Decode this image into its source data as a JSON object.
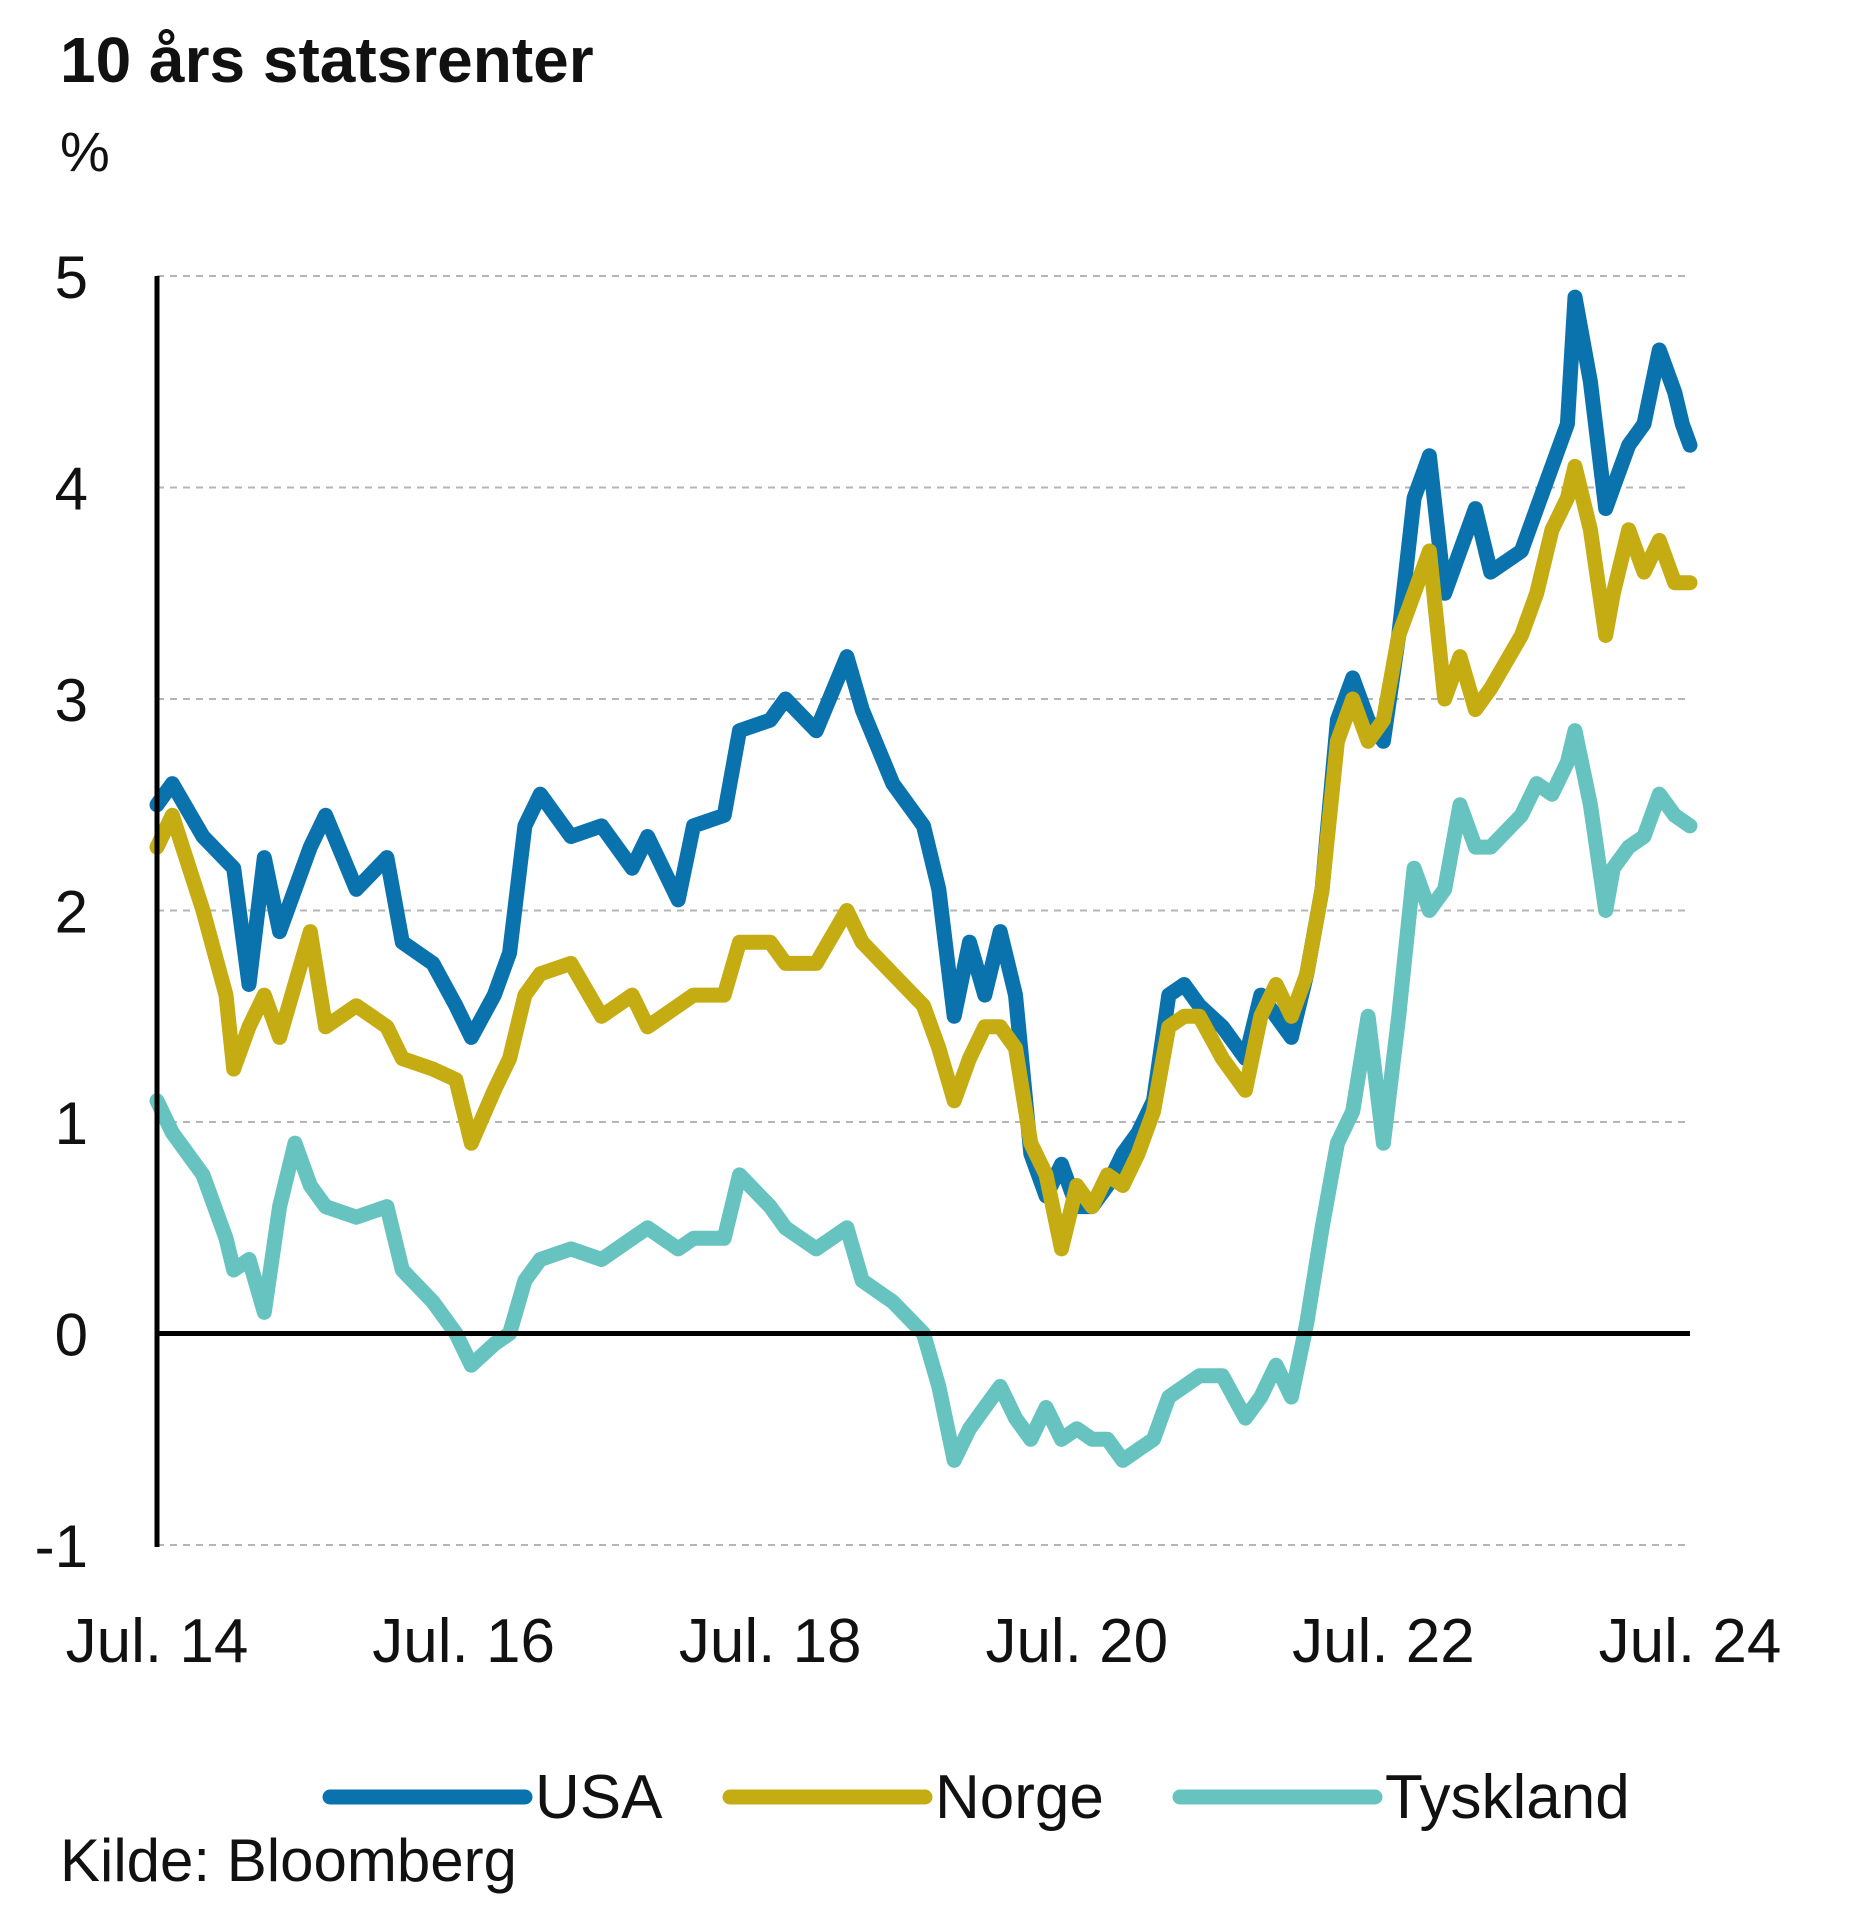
{
  "chart_data": {
    "type": "line",
    "title": "10 års statsrenter",
    "ylabel": "%",
    "ylim": [
      -1,
      5
    ],
    "yticks": [
      "5",
      "4",
      "3",
      "2",
      "1",
      "0",
      "-1"
    ],
    "xlabels": [
      "Jul. 14",
      "Jul. 16",
      "Jul. 18",
      "Jul. 20",
      "Jul. 22",
      "Jul. 24"
    ],
    "xlabel_years": [
      2014.5,
      2016.5,
      2018.5,
      2020.5,
      2022.5,
      2024.5
    ],
    "xlim": [
      2014.5,
      2024.5
    ],
    "grid": true,
    "legend_position": "bottom",
    "source": "Kilde: Bloomberg",
    "series": [
      {
        "name": "USA",
        "color": "#0a72ad",
        "points": [
          [
            2014.5,
            2.5
          ],
          [
            2014.6,
            2.6
          ],
          [
            2014.8,
            2.35
          ],
          [
            2015.0,
            2.2
          ],
          [
            2015.1,
            1.65
          ],
          [
            2015.2,
            2.25
          ],
          [
            2015.3,
            1.9
          ],
          [
            2015.5,
            2.3
          ],
          [
            2015.6,
            2.45
          ],
          [
            2015.8,
            2.1
          ],
          [
            2016.0,
            2.25
          ],
          [
            2016.1,
            1.85
          ],
          [
            2016.3,
            1.75
          ],
          [
            2016.45,
            1.55
          ],
          [
            2016.55,
            1.4
          ],
          [
            2016.7,
            1.6
          ],
          [
            2016.8,
            1.8
          ],
          [
            2016.9,
            2.4
          ],
          [
            2017.0,
            2.55
          ],
          [
            2017.2,
            2.35
          ],
          [
            2017.4,
            2.4
          ],
          [
            2017.6,
            2.2
          ],
          [
            2017.7,
            2.35
          ],
          [
            2017.9,
            2.05
          ],
          [
            2018.0,
            2.4
          ],
          [
            2018.2,
            2.45
          ],
          [
            2018.3,
            2.85
          ],
          [
            2018.5,
            2.9
          ],
          [
            2018.6,
            3.0
          ],
          [
            2018.8,
            2.85
          ],
          [
            2019.0,
            3.2
          ],
          [
            2019.1,
            2.95
          ],
          [
            2019.3,
            2.6
          ],
          [
            2019.5,
            2.4
          ],
          [
            2019.6,
            2.1
          ],
          [
            2019.7,
            1.5
          ],
          [
            2019.8,
            1.85
          ],
          [
            2019.9,
            1.6
          ],
          [
            2020.0,
            1.9
          ],
          [
            2020.1,
            1.6
          ],
          [
            2020.2,
            0.85
          ],
          [
            2020.3,
            0.65
          ],
          [
            2020.4,
            0.8
          ],
          [
            2020.5,
            0.6
          ],
          [
            2020.6,
            0.6
          ],
          [
            2020.7,
            0.7
          ],
          [
            2020.8,
            0.85
          ],
          [
            2020.9,
            0.95
          ],
          [
            2021.0,
            1.1
          ],
          [
            2021.1,
            1.6
          ],
          [
            2021.2,
            1.65
          ],
          [
            2021.3,
            1.55
          ],
          [
            2021.45,
            1.45
          ],
          [
            2021.6,
            1.3
          ],
          [
            2021.7,
            1.6
          ],
          [
            2021.8,
            1.5
          ],
          [
            2021.9,
            1.4
          ],
          [
            2022.0,
            1.7
          ],
          [
            2022.1,
            2.1
          ],
          [
            2022.2,
            2.9
          ],
          [
            2022.3,
            3.1
          ],
          [
            2022.4,
            2.9
          ],
          [
            2022.5,
            2.8
          ],
          [
            2022.6,
            3.3
          ],
          [
            2022.7,
            3.95
          ],
          [
            2022.8,
            4.15
          ],
          [
            2022.9,
            3.5
          ],
          [
            2023.0,
            3.7
          ],
          [
            2023.1,
            3.9
          ],
          [
            2023.2,
            3.6
          ],
          [
            2023.4,
            3.7
          ],
          [
            2023.5,
            3.9
          ],
          [
            2023.6,
            4.1
          ],
          [
            2023.7,
            4.3
          ],
          [
            2023.75,
            4.9
          ],
          [
            2023.85,
            4.5
          ],
          [
            2023.95,
            3.9
          ],
          [
            2024.0,
            4.0
          ],
          [
            2024.1,
            4.2
          ],
          [
            2024.2,
            4.3
          ],
          [
            2024.3,
            4.65
          ],
          [
            2024.4,
            4.45
          ],
          [
            2024.45,
            4.3
          ],
          [
            2024.5,
            4.2
          ]
        ]
      },
      {
        "name": "Norge",
        "color": "#c4ac12",
        "points": [
          [
            2014.5,
            2.3
          ],
          [
            2014.6,
            2.45
          ],
          [
            2014.8,
            2.0
          ],
          [
            2014.95,
            1.6
          ],
          [
            2015.0,
            1.25
          ],
          [
            2015.1,
            1.45
          ],
          [
            2015.2,
            1.6
          ],
          [
            2015.3,
            1.4
          ],
          [
            2015.5,
            1.9
          ],
          [
            2015.6,
            1.45
          ],
          [
            2015.8,
            1.55
          ],
          [
            2016.0,
            1.45
          ],
          [
            2016.1,
            1.3
          ],
          [
            2016.3,
            1.25
          ],
          [
            2016.45,
            1.2
          ],
          [
            2016.55,
            0.9
          ],
          [
            2016.7,
            1.15
          ],
          [
            2016.8,
            1.3
          ],
          [
            2016.9,
            1.6
          ],
          [
            2017.0,
            1.7
          ],
          [
            2017.2,
            1.75
          ],
          [
            2017.4,
            1.5
          ],
          [
            2017.6,
            1.6
          ],
          [
            2017.7,
            1.45
          ],
          [
            2017.9,
            1.55
          ],
          [
            2018.0,
            1.6
          ],
          [
            2018.2,
            1.6
          ],
          [
            2018.3,
            1.85
          ],
          [
            2018.5,
            1.85
          ],
          [
            2018.6,
            1.75
          ],
          [
            2018.8,
            1.75
          ],
          [
            2019.0,
            2.0
          ],
          [
            2019.1,
            1.85
          ],
          [
            2019.3,
            1.7
          ],
          [
            2019.5,
            1.55
          ],
          [
            2019.6,
            1.35
          ],
          [
            2019.7,
            1.1
          ],
          [
            2019.8,
            1.3
          ],
          [
            2019.9,
            1.45
          ],
          [
            2020.0,
            1.45
          ],
          [
            2020.1,
            1.35
          ],
          [
            2020.2,
            0.9
          ],
          [
            2020.3,
            0.75
          ],
          [
            2020.4,
            0.4
          ],
          [
            2020.5,
            0.7
          ],
          [
            2020.6,
            0.6
          ],
          [
            2020.7,
            0.75
          ],
          [
            2020.8,
            0.7
          ],
          [
            2020.9,
            0.85
          ],
          [
            2021.0,
            1.05
          ],
          [
            2021.1,
            1.45
          ],
          [
            2021.2,
            1.5
          ],
          [
            2021.3,
            1.5
          ],
          [
            2021.45,
            1.3
          ],
          [
            2021.6,
            1.15
          ],
          [
            2021.7,
            1.5
          ],
          [
            2021.8,
            1.65
          ],
          [
            2021.9,
            1.5
          ],
          [
            2022.0,
            1.7
          ],
          [
            2022.1,
            2.1
          ],
          [
            2022.2,
            2.8
          ],
          [
            2022.3,
            3.0
          ],
          [
            2022.4,
            2.8
          ],
          [
            2022.5,
            2.9
          ],
          [
            2022.6,
            3.3
          ],
          [
            2022.7,
            3.5
          ],
          [
            2022.8,
            3.7
          ],
          [
            2022.9,
            3.0
          ],
          [
            2023.0,
            3.2
          ],
          [
            2023.1,
            2.95
          ],
          [
            2023.2,
            3.05
          ],
          [
            2023.4,
            3.3
          ],
          [
            2023.5,
            3.5
          ],
          [
            2023.6,
            3.8
          ],
          [
            2023.7,
            3.95
          ],
          [
            2023.75,
            4.1
          ],
          [
            2023.85,
            3.8
          ],
          [
            2023.95,
            3.3
          ],
          [
            2024.0,
            3.5
          ],
          [
            2024.1,
            3.8
          ],
          [
            2024.2,
            3.6
          ],
          [
            2024.3,
            3.75
          ],
          [
            2024.4,
            3.55
          ],
          [
            2024.5,
            3.55
          ]
        ]
      },
      {
        "name": "Tyskland",
        "color": "#66c3bf",
        "points": [
          [
            2014.5,
            1.1
          ],
          [
            2014.6,
            0.95
          ],
          [
            2014.8,
            0.75
          ],
          [
            2014.95,
            0.45
          ],
          [
            2015.0,
            0.3
          ],
          [
            2015.1,
            0.35
          ],
          [
            2015.2,
            0.1
          ],
          [
            2015.3,
            0.6
          ],
          [
            2015.4,
            0.9
          ],
          [
            2015.5,
            0.7
          ],
          [
            2015.6,
            0.6
          ],
          [
            2015.8,
            0.55
          ],
          [
            2016.0,
            0.6
          ],
          [
            2016.1,
            0.3
          ],
          [
            2016.3,
            0.15
          ],
          [
            2016.45,
            0.0
          ],
          [
            2016.55,
            -0.15
          ],
          [
            2016.7,
            -0.05
          ],
          [
            2016.8,
            0.0
          ],
          [
            2016.9,
            0.25
          ],
          [
            2017.0,
            0.35
          ],
          [
            2017.2,
            0.4
          ],
          [
            2017.4,
            0.35
          ],
          [
            2017.6,
            0.45
          ],
          [
            2017.7,
            0.5
          ],
          [
            2017.9,
            0.4
          ],
          [
            2018.0,
            0.45
          ],
          [
            2018.2,
            0.45
          ],
          [
            2018.3,
            0.75
          ],
          [
            2018.5,
            0.6
          ],
          [
            2018.6,
            0.5
          ],
          [
            2018.8,
            0.4
          ],
          [
            2019.0,
            0.5
          ],
          [
            2019.1,
            0.25
          ],
          [
            2019.3,
            0.15
          ],
          [
            2019.5,
            0.0
          ],
          [
            2019.6,
            -0.25
          ],
          [
            2019.7,
            -0.6
          ],
          [
            2019.8,
            -0.45
          ],
          [
            2019.9,
            -0.35
          ],
          [
            2020.0,
            -0.25
          ],
          [
            2020.1,
            -0.4
          ],
          [
            2020.2,
            -0.5
          ],
          [
            2020.3,
            -0.35
          ],
          [
            2020.4,
            -0.5
          ],
          [
            2020.5,
            -0.45
          ],
          [
            2020.6,
            -0.5
          ],
          [
            2020.7,
            -0.5
          ],
          [
            2020.8,
            -0.6
          ],
          [
            2020.9,
            -0.55
          ],
          [
            2021.0,
            -0.5
          ],
          [
            2021.1,
            -0.3
          ],
          [
            2021.2,
            -0.25
          ],
          [
            2021.3,
            -0.2
          ],
          [
            2021.45,
            -0.2
          ],
          [
            2021.6,
            -0.4
          ],
          [
            2021.7,
            -0.3
          ],
          [
            2021.8,
            -0.15
          ],
          [
            2021.9,
            -0.3
          ],
          [
            2022.0,
            0.05
          ],
          [
            2022.1,
            0.5
          ],
          [
            2022.2,
            0.9
          ],
          [
            2022.3,
            1.05
          ],
          [
            2022.4,
            1.5
          ],
          [
            2022.5,
            0.9
          ],
          [
            2022.6,
            1.5
          ],
          [
            2022.7,
            2.2
          ],
          [
            2022.8,
            2.0
          ],
          [
            2022.9,
            2.1
          ],
          [
            2023.0,
            2.5
          ],
          [
            2023.1,
            2.3
          ],
          [
            2023.2,
            2.3
          ],
          [
            2023.4,
            2.45
          ],
          [
            2023.5,
            2.6
          ],
          [
            2023.6,
            2.55
          ],
          [
            2023.7,
            2.7
          ],
          [
            2023.75,
            2.85
          ],
          [
            2023.85,
            2.5
          ],
          [
            2023.95,
            2.0
          ],
          [
            2024.0,
            2.2
          ],
          [
            2024.1,
            2.3
          ],
          [
            2024.2,
            2.35
          ],
          [
            2024.3,
            2.55
          ],
          [
            2024.4,
            2.45
          ],
          [
            2024.5,
            2.4
          ]
        ]
      }
    ]
  }
}
